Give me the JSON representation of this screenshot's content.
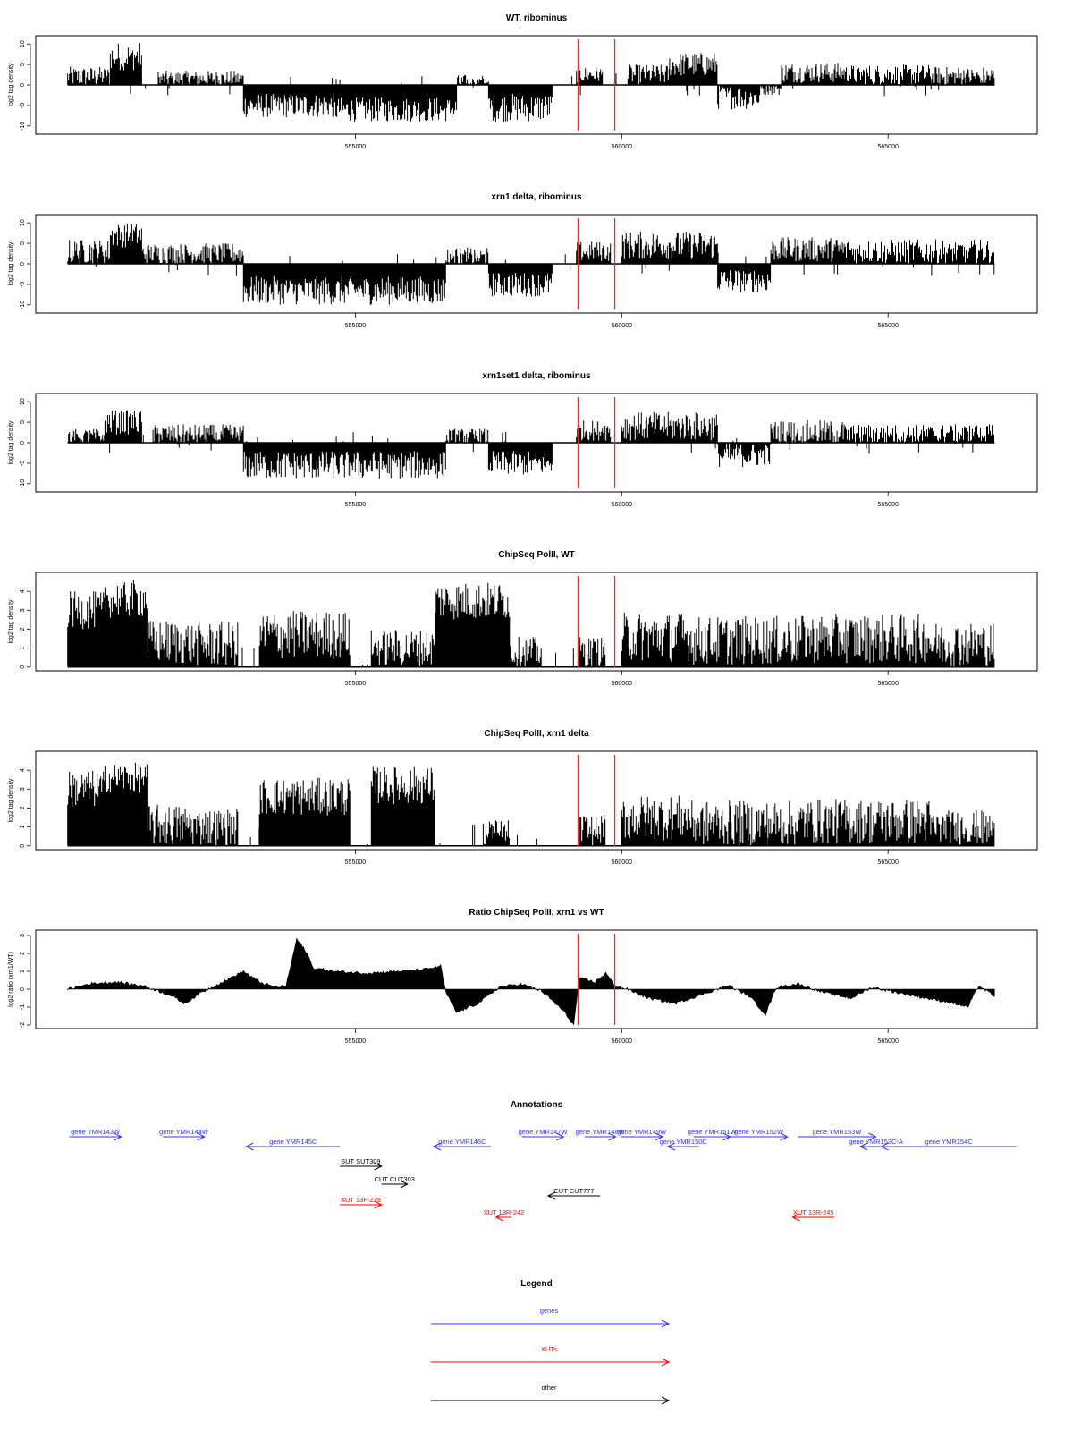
{
  "chart_data": [
    {
      "type": "bar",
      "title": "WT, ribominus",
      "ylabel": "log2 tag density",
      "ylim": [
        -12,
        12
      ],
      "yticks": [
        -10,
        -5,
        0,
        5,
        10
      ],
      "xlim": [
        549000,
        567800
      ],
      "xticks": [
        555000,
        560000,
        565000
      ],
      "markers": [
        559180,
        559870
      ],
      "series": [
        {
          "segments": [
            {
              "x0": 549600,
              "x1": 550400,
              "mean": 2,
              "amp": 2.5
            },
            {
              "x0": 550400,
              "x1": 551000,
              "mean": 7,
              "amp": 3.5
            },
            {
              "x0": 551300,
              "x1": 552900,
              "mean": 1.5,
              "amp": 2
            },
            {
              "x0": 552900,
              "x1": 554600,
              "mean": -5,
              "amp": 3
            },
            {
              "x0": 554600,
              "x1": 556900,
              "mean": -6,
              "amp": 3
            },
            {
              "x0": 556900,
              "x1": 557500,
              "mean": 0.5,
              "amp": 2
            },
            {
              "x0": 557500,
              "x1": 558700,
              "mean": -5.5,
              "amp": 3.5
            },
            {
              "x0": 559150,
              "x1": 559650,
              "mean": 2.5,
              "amp": 2
            },
            {
              "x0": 560100,
              "x1": 560900,
              "mean": 2.5,
              "amp": 2.5
            },
            {
              "x0": 560900,
              "x1": 561800,
              "mean": 5,
              "amp": 3
            },
            {
              "x0": 561800,
              "x1": 562600,
              "mean": -3,
              "amp": 3
            },
            {
              "x0": 562600,
              "x1": 563000,
              "mean": -1,
              "amp": 1.5
            },
            {
              "x0": 563000,
              "x1": 564200,
              "mean": 3,
              "amp": 2.5
            },
            {
              "x0": 564200,
              "x1": 565800,
              "mean": 2.5,
              "amp": 2.5
            },
            {
              "x0": 565800,
              "x1": 567000,
              "mean": 2,
              "amp": 2.5
            }
          ]
        }
      ]
    },
    {
      "type": "bar",
      "title": "xrn1 delta, ribominus",
      "ylabel": "log2 tag density",
      "ylim": [
        -12,
        12
      ],
      "yticks": [
        -10,
        -5,
        0,
        5,
        10
      ],
      "xlim": [
        549000,
        567800
      ],
      "xticks": [
        555000,
        560000,
        565000
      ],
      "markers": [
        559180,
        559870
      ],
      "series": [
        {
          "segments": [
            {
              "x0": 549600,
              "x1": 550400,
              "mean": 3,
              "amp": 3
            },
            {
              "x0": 550400,
              "x1": 551000,
              "mean": 7,
              "amp": 3
            },
            {
              "x0": 551000,
              "x1": 552900,
              "mean": 2.5,
              "amp": 2.5
            },
            {
              "x0": 552900,
              "x1": 556700,
              "mean": -6.5,
              "amp": 3.5
            },
            {
              "x0": 556700,
              "x1": 557500,
              "mean": 1.5,
              "amp": 2.5
            },
            {
              "x0": 557500,
              "x1": 558700,
              "mean": -5,
              "amp": 3
            },
            {
              "x0": 559150,
              "x1": 559800,
              "mean": 3,
              "amp": 2.5
            },
            {
              "x0": 560000,
              "x1": 561800,
              "mean": 4.5,
              "amp": 3.5
            },
            {
              "x0": 561800,
              "x1": 562800,
              "mean": -4,
              "amp": 3
            },
            {
              "x0": 562800,
              "x1": 564200,
              "mean": 3.5,
              "amp": 3
            },
            {
              "x0": 564200,
              "x1": 567000,
              "mean": 3,
              "amp": 3
            }
          ]
        }
      ]
    },
    {
      "type": "bar",
      "title": "xrn1set1 delta, ribominus",
      "ylabel": "log2 tag density",
      "ylim": [
        -12,
        12
      ],
      "yticks": [
        -10,
        -5,
        0,
        5,
        10
      ],
      "xlim": [
        549000,
        567800
      ],
      "xticks": [
        555000,
        560000,
        565000
      ],
      "markers": [
        559180,
        559870
      ],
      "series": [
        {
          "segments": [
            {
              "x0": 549600,
              "x1": 550300,
              "mean": 1.5,
              "amp": 2
            },
            {
              "x0": 550300,
              "x1": 551000,
              "mean": 5,
              "amp": 3
            },
            {
              "x0": 551200,
              "x1": 552900,
              "mean": 2,
              "amp": 2.5
            },
            {
              "x0": 552900,
              "x1": 556700,
              "mean": -5.5,
              "amp": 3.5
            },
            {
              "x0": 556700,
              "x1": 557500,
              "mean": 1.5,
              "amp": 2
            },
            {
              "x0": 557500,
              "x1": 558700,
              "mean": -5,
              "amp": 3
            },
            {
              "x0": 559150,
              "x1": 559800,
              "mean": 3,
              "amp": 2.5
            },
            {
              "x0": 560000,
              "x1": 561800,
              "mean": 4,
              "amp": 3.5
            },
            {
              "x0": 561800,
              "x1": 562800,
              "mean": -3,
              "amp": 3
            },
            {
              "x0": 562800,
              "x1": 564200,
              "mean": 2.5,
              "amp": 3
            },
            {
              "x0": 564200,
              "x1": 567000,
              "mean": 2,
              "amp": 2.5
            }
          ]
        }
      ]
    },
    {
      "type": "bar",
      "title": "ChipSeq PolII, WT",
      "ylabel": "log2 tag density",
      "ylim": [
        -0.2,
        5
      ],
      "yticks": [
        0,
        1,
        2,
        3,
        4
      ],
      "xlim": [
        549000,
        567800
      ],
      "xticks": [
        555000,
        560000,
        565000
      ],
      "markers": [
        559180,
        559870
      ],
      "series": [
        {
          "segments": [
            {
              "x0": 549600,
              "x1": 550300,
              "mean": 3,
              "amp": 1
            },
            {
              "x0": 550300,
              "x1": 551100,
              "mean": 3.6,
              "amp": 1
            },
            {
              "x0": 551100,
              "x1": 551900,
              "mean": 1.3,
              "amp": 1.2
            },
            {
              "x0": 551900,
              "x1": 552800,
              "mean": 1.2,
              "amp": 1.2
            },
            {
              "x0": 553200,
              "x1": 554900,
              "mean": 1.7,
              "amp": 1.3
            },
            {
              "x0": 555300,
              "x1": 556500,
              "mean": 1,
              "amp": 1
            },
            {
              "x0": 556500,
              "x1": 557900,
              "mean": 3.5,
              "amp": 1
            },
            {
              "x0": 557900,
              "x1": 558500,
              "mean": 0.8,
              "amp": 0.8
            },
            {
              "x0": 559200,
              "x1": 559700,
              "mean": 0.8,
              "amp": 0.8
            },
            {
              "x0": 560000,
              "x1": 561300,
              "mean": 1.6,
              "amp": 1.3
            },
            {
              "x0": 561300,
              "x1": 563400,
              "mean": 1.4,
              "amp": 1.3
            },
            {
              "x0": 563400,
              "x1": 565800,
              "mean": 1.5,
              "amp": 1.3
            },
            {
              "x0": 565800,
              "x1": 567000,
              "mean": 1.2,
              "amp": 1.2
            }
          ]
        }
      ]
    },
    {
      "type": "bar",
      "title": "ChipSeq PolII, xrn1 delta",
      "ylabel": "log2 tag density",
      "ylim": [
        -0.2,
        5
      ],
      "yticks": [
        0,
        1,
        2,
        3,
        4
      ],
      "xlim": [
        549000,
        567800
      ],
      "xticks": [
        555000,
        560000,
        565000
      ],
      "markers": [
        559180,
        559870
      ],
      "series": [
        {
          "segments": [
            {
              "x0": 549600,
              "x1": 550300,
              "mean": 3,
              "amp": 1
            },
            {
              "x0": 550300,
              "x1": 551100,
              "mean": 3.6,
              "amp": 0.8
            },
            {
              "x0": 551100,
              "x1": 551900,
              "mean": 1.1,
              "amp": 1.1
            },
            {
              "x0": 551900,
              "x1": 552800,
              "mean": 1,
              "amp": 1
            },
            {
              "x0": 553200,
              "x1": 554900,
              "mean": 2.6,
              "amp": 1
            },
            {
              "x0": 555300,
              "x1": 556500,
              "mean": 3.2,
              "amp": 1
            },
            {
              "x0": 557400,
              "x1": 557900,
              "mean": 0.6,
              "amp": 0.8
            },
            {
              "x0": 559200,
              "x1": 559700,
              "mean": 0.8,
              "amp": 0.9
            },
            {
              "x0": 560000,
              "x1": 561300,
              "mean": 1.5,
              "amp": 1.2
            },
            {
              "x0": 561300,
              "x1": 563400,
              "mean": 1.2,
              "amp": 1.2
            },
            {
              "x0": 563400,
              "x1": 565800,
              "mean": 1.3,
              "amp": 1.2
            },
            {
              "x0": 565800,
              "x1": 567000,
              "mean": 0.9,
              "amp": 1
            }
          ]
        }
      ]
    },
    {
      "type": "area",
      "title": "Ratio ChipSeq PolII, xrn1 vs WT",
      "ylabel": "log2 ratio (xrn1/WT)",
      "ylim": [
        -2.2,
        3.3
      ],
      "yticks": [
        -2,
        -1,
        0,
        1,
        2,
        3
      ],
      "xlim": [
        549000,
        567800
      ],
      "xticks": [
        555000,
        560000,
        565000
      ],
      "markers": [
        559180,
        559870
      ],
      "series": [
        {
          "points": [
            [
              549600,
              0
            ],
            [
              550000,
              0.3
            ],
            [
              550500,
              0.4
            ],
            [
              551000,
              0.2
            ],
            [
              551500,
              -0.3
            ],
            [
              551800,
              -0.8
            ],
            [
              552100,
              -0.2
            ],
            [
              552500,
              0.4
            ],
            [
              552900,
              1.0
            ],
            [
              553200,
              0.4
            ],
            [
              553500,
              0.1
            ],
            [
              553700,
              0.2
            ],
            [
              553900,
              2.8
            ],
            [
              554100,
              2.0
            ],
            [
              554200,
              1.2
            ],
            [
              554600,
              1.0
            ],
            [
              555200,
              0.9
            ],
            [
              555800,
              1.0
            ],
            [
              556300,
              1.1
            ],
            [
              556600,
              1.3
            ],
            [
              556700,
              -0.2
            ],
            [
              556900,
              -1.3
            ],
            [
              557300,
              -0.8
            ],
            [
              557700,
              0.1
            ],
            [
              558100,
              0.3
            ],
            [
              558500,
              -0.1
            ],
            [
              558900,
              -1.2
            ],
            [
              559100,
              -2.0
            ],
            [
              559200,
              0.6
            ],
            [
              559500,
              0.4
            ],
            [
              559700,
              0.9
            ],
            [
              559870,
              0.2
            ],
            [
              560100,
              0
            ],
            [
              560500,
              -0.5
            ],
            [
              561000,
              -0.8
            ],
            [
              561500,
              -0.3
            ],
            [
              562000,
              0.2
            ],
            [
              562400,
              -0.4
            ],
            [
              562700,
              -1.4
            ],
            [
              562900,
              0.1
            ],
            [
              563300,
              0.3
            ],
            [
              563800,
              -0.2
            ],
            [
              564300,
              -0.5
            ],
            [
              564700,
              0.1
            ],
            [
              565200,
              -0.2
            ],
            [
              565700,
              -0.5
            ],
            [
              566100,
              -0.7
            ],
            [
              566500,
              -1.0
            ],
            [
              566700,
              0.2
            ],
            [
              567000,
              -0.4
            ]
          ]
        }
      ]
    }
  ],
  "annotations": {
    "title": "Annotations",
    "items": [
      {
        "label": "gene YMR143W",
        "start": 548600,
        "end": 549600,
        "row": 0,
        "dir": "+",
        "color": "#3333ff"
      },
      {
        "label": "gene YMR144W",
        "start": 550400,
        "end": 551200,
        "row": 0,
        "dir": "+",
        "color": "#3333ff"
      },
      {
        "label": "gene YMR145C",
        "start": 552000,
        "end": 553800,
        "row": 1,
        "dir": "-",
        "color": "#3333ff"
      },
      {
        "label": "gene YMR146C",
        "start": 555600,
        "end": 556700,
        "row": 1,
        "dir": "-",
        "color": "#3333ff"
      },
      {
        "label": "gene YMR147W",
        "start": 557300,
        "end": 558100,
        "row": 0,
        "dir": "+",
        "color": "#3333ff"
      },
      {
        "label": "gene YMR148W",
        "start": 558500,
        "end": 559100,
        "row": 0,
        "dir": "+",
        "color": "#3333ff"
      },
      {
        "label": "gene YMR149W",
        "start": 559200,
        "end": 560000,
        "row": 0,
        "dir": "+",
        "color": "#3333ff"
      },
      {
        "label": "gene YMR150C",
        "start": 560100,
        "end": 560700,
        "row": 1,
        "dir": "-",
        "color": "#3333ff"
      },
      {
        "label": "gene YMR151W",
        "start": 560600,
        "end": 561300,
        "row": 0,
        "dir": "+",
        "color": "#3333ff"
      },
      {
        "label": "gene YMR152W",
        "start": 561300,
        "end": 562400,
        "row": 0,
        "dir": "+",
        "color": "#3333ff"
      },
      {
        "label": "gene YMR153W",
        "start": 562600,
        "end": 564100,
        "row": 0,
        "dir": "+",
        "color": "#3333ff"
      },
      {
        "label": "gene YMR153C-A",
        "start": 563800,
        "end": 564400,
        "row": 1,
        "dir": "-",
        "color": "#3333ff"
      },
      {
        "label": "gene YMR154C",
        "start": 564200,
        "end": 566800,
        "row": 1,
        "dir": "-",
        "color": "#3333ff"
      },
      {
        "label": "SUT SUT309",
        "start": 553800,
        "end": 554600,
        "row": 2,
        "dir": "+",
        "color": "#000000"
      },
      {
        "label": "CUT CUT303",
        "start": 554600,
        "end": 555100,
        "row": 3,
        "dir": "+",
        "color": "#000000"
      },
      {
        "label": "CUT CUT777",
        "start": 557800,
        "end": 558800,
        "row": 4,
        "dir": "-",
        "color": "#000000"
      },
      {
        "label": "XUT 13F-239",
        "start": 553800,
        "end": 554600,
        "row": 5,
        "dir": "+",
        "color": "#ff0000"
      },
      {
        "label": "XUT 13R-242",
        "start": 556800,
        "end": 557100,
        "row": 6,
        "dir": "-",
        "color": "#ff0000"
      },
      {
        "label": "XUT 13R-245",
        "start": 562500,
        "end": 563300,
        "row": 6,
        "dir": "-",
        "color": "#ff0000"
      }
    ]
  },
  "legend": {
    "title": "Legend",
    "items": [
      {
        "label": "genes",
        "color": "#3333ff"
      },
      {
        "label": "XUTs",
        "color": "#ff0000"
      },
      {
        "label": "other",
        "color": "#000000"
      }
    ]
  }
}
